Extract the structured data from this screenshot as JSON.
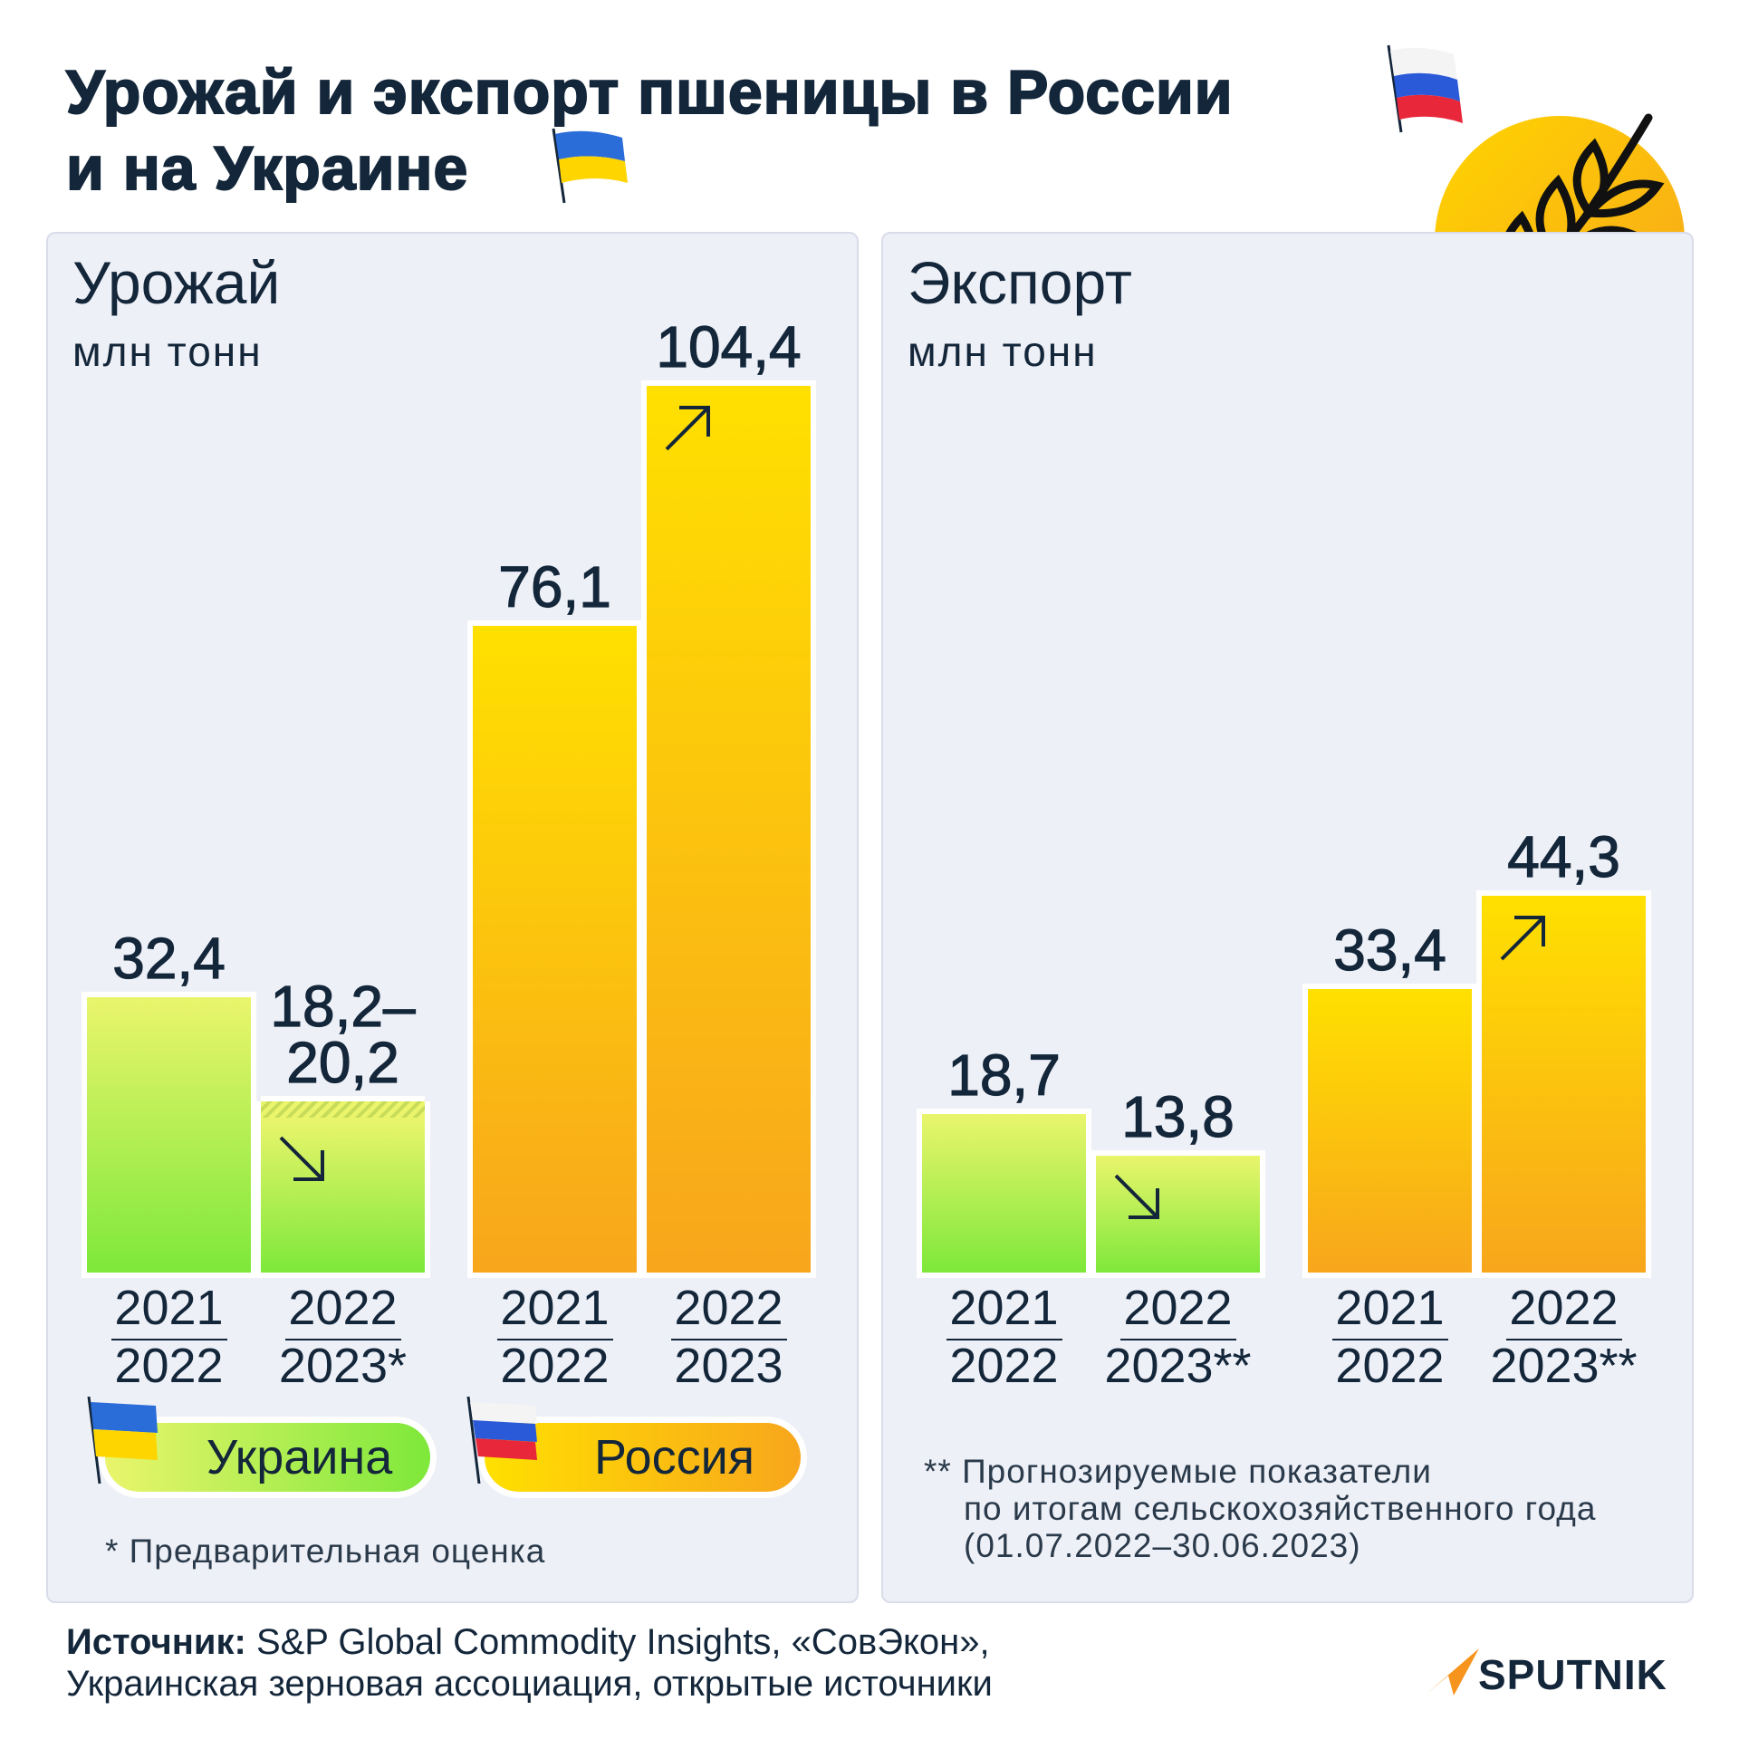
{
  "title": "Урожай и экспорт пшеницы в России\nи на Украине",
  "source_label": "Источник:",
  "source": "S&P Global Commodity Insights, «СовЭкон»,\nУкраинская зерновая ассоциация, открытые источники",
  "logo": "SPUTNIK",
  "chart_data": [
    {
      "type": "bar",
      "title": "Урожай",
      "subtitle": "млн тонн",
      "series": [
        {
          "name": "Украина",
          "color": [
            "#eaf56c",
            "#7ee83a"
          ],
          "categories": [
            "2021\n2022",
            "2022\n2023*"
          ],
          "values": [
            32.4,
            [
              18.2,
              20.2
            ]
          ],
          "value_labels": [
            "32,4",
            "18,2–20,2"
          ]
        },
        {
          "name": "Россия",
          "color": [
            "#ffe000",
            "#f8a61c"
          ],
          "categories": [
            "2021\n2022",
            "2022\n2023"
          ],
          "values": [
            76.1,
            104.4
          ],
          "value_labels": [
            "76,1",
            "104,4"
          ]
        }
      ],
      "note": "* Предварительная оценка"
    },
    {
      "type": "bar",
      "title": "Экспорт",
      "subtitle": "млн тонн",
      "series": [
        {
          "color": [
            "#eaf56c",
            "#7ee83a"
          ],
          "categories": [
            "2021\n2022",
            "2022\n2023**"
          ],
          "values": [
            18.7,
            13.8
          ],
          "value_labels": [
            "18,7",
            "13,8"
          ]
        },
        {
          "color": [
            "#ffe000",
            "#f8a61c"
          ],
          "categories": [
            "2021\n2022",
            "2022\n2023**"
          ],
          "values": [
            33.4,
            44.3
          ],
          "value_labels": [
            "33,4",
            "44,3"
          ]
        }
      ],
      "note": "** Прогнозируемые показатели\nпо итогам сельскохозяйственного года\n(01.07.2022–30.06.2023)"
    }
  ]
}
